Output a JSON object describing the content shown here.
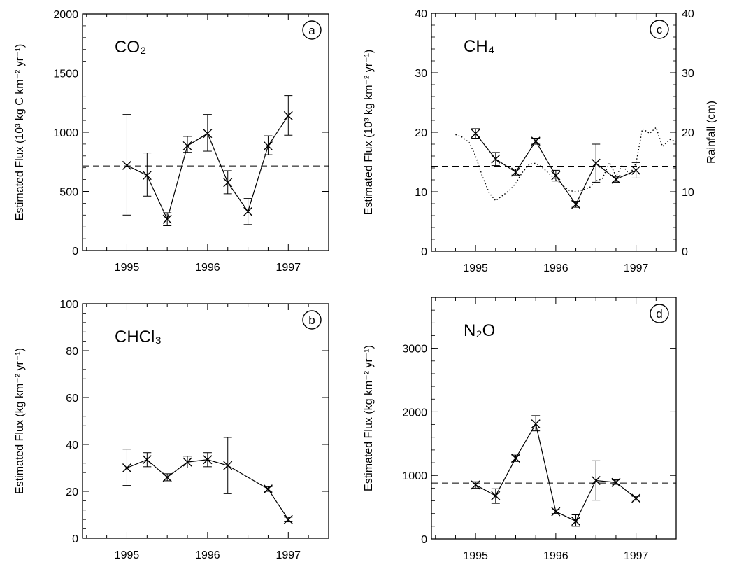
{
  "chart_data": [
    {
      "panel_label": "a",
      "type": "line",
      "title": "CO₂",
      "ylabel": "Estimated Flux (10³ kg C km⁻² yr⁻¹)",
      "xlabel": "",
      "xlim": [
        1994.45,
        1997.5
      ],
      "ylim": [
        0,
        2000
      ],
      "xticks": [
        1995,
        1996,
        1997
      ],
      "yticks": [
        0,
        500,
        1000,
        1500,
        2000
      ],
      "reference_line": 715,
      "series": [
        {
          "x": [
            1995.0,
            1995.25,
            1995.5,
            1995.75,
            1996.0,
            1996.25,
            1996.5,
            1996.75,
            1997.0
          ],
          "y": [
            720,
            635,
            265,
            885,
            990,
            575,
            330,
            885,
            1140
          ],
          "err_low": [
            300,
            460,
            210,
            830,
            840,
            480,
            220,
            810,
            975
          ],
          "err_high": [
            1150,
            825,
            320,
            965,
            1150,
            675,
            440,
            970,
            1310
          ]
        }
      ]
    },
    {
      "panel_label": "b",
      "type": "line",
      "title": "CHCl₃",
      "ylabel": "Estimated Flux (kg km⁻² yr⁻¹)",
      "xlabel": "",
      "xlim": [
        1994.45,
        1997.5
      ],
      "ylim": [
        0,
        100
      ],
      "xticks": [
        1995,
        1996,
        1997
      ],
      "yticks": [
        0,
        20,
        40,
        60,
        80,
        100
      ],
      "reference_line": 27,
      "series": [
        {
          "x": [
            1995.0,
            1995.25,
            1995.5,
            1995.75,
            1996.0,
            1996.25,
            1996.75,
            1997.0
          ],
          "y": [
            30,
            33.5,
            26,
            32.5,
            33.5,
            31,
            21,
            8
          ],
          "err_low": [
            22.5,
            30.5,
            24.5,
            30,
            30.5,
            19,
            20,
            7
          ],
          "err_high": [
            38,
            36.5,
            27.5,
            35,
            36.5,
            43,
            22,
            9
          ]
        }
      ]
    },
    {
      "panel_label": "c",
      "type": "line",
      "title": "CH₄",
      "ylabel": "Estimated Flux (10³ kg km⁻² yr⁻¹)",
      "y2label": "Rainfall (cm)",
      "xlabel": "",
      "xlim": [
        1994.45,
        1997.5
      ],
      "ylim": [
        0,
        40
      ],
      "y2lim": [
        0,
        40
      ],
      "xticks": [
        1995,
        1996,
        1997
      ],
      "yticks": [
        0,
        10,
        20,
        30,
        40
      ],
      "y2ticks": [
        0,
        10,
        20,
        30,
        40
      ],
      "reference_line": 14.3,
      "series": [
        {
          "x": [
            1995.0,
            1995.25,
            1995.5,
            1995.75,
            1996.0,
            1996.25,
            1996.5,
            1996.75,
            1997.0
          ],
          "y": [
            19.8,
            15.5,
            13.3,
            18.5,
            12.7,
            7.9,
            14.8,
            12.1,
            13.6
          ],
          "err_low": [
            19.0,
            14.4,
            12.8,
            18.0,
            11.8,
            7.4,
            11.6,
            11.6,
            12.3
          ],
          "err_high": [
            20.6,
            16.6,
            13.8,
            19.0,
            13.6,
            8.4,
            18.0,
            12.6,
            14.9
          ]
        }
      ],
      "rainfall": {
        "x": [
          1994.75,
          1994.83,
          1994.92,
          1995.0,
          1995.08,
          1995.17,
          1995.25,
          1995.33,
          1995.42,
          1995.5,
          1995.58,
          1995.67,
          1995.75,
          1995.83,
          1995.92,
          1996.0,
          1996.08,
          1996.17,
          1996.25,
          1996.33,
          1996.42,
          1996.5,
          1996.58,
          1996.67,
          1996.75,
          1996.83,
          1996.92,
          1997.0,
          1997.08,
          1997.17,
          1997.25,
          1997.33,
          1997.42,
          1997.5
        ],
        "y": [
          19.6,
          19.2,
          18.3,
          16.0,
          12.8,
          9.8,
          8.5,
          9.3,
          10.2,
          11.4,
          13.2,
          14.6,
          14.8,
          14.1,
          13.0,
          12.0,
          11.1,
          10.2,
          10.0,
          10.3,
          10.7,
          11.8,
          12.2,
          14.9,
          12.6,
          14.5,
          12.8,
          14.8,
          20.6,
          19.8,
          20.8,
          17.6,
          18.8,
          18.5
        ]
      }
    },
    {
      "panel_label": "d",
      "type": "line",
      "title": "N₂O",
      "ylabel": "Estimated Flux (kg km⁻² yr⁻¹)",
      "xlabel": "",
      "xlim": [
        1994.45,
        1997.5
      ],
      "ylim": [
        0,
        3800
      ],
      "xticks": [
        1995,
        1996,
        1997
      ],
      "yticks": [
        0,
        1000,
        2000,
        3000
      ],
      "reference_line": 880,
      "series": [
        {
          "x": [
            1995.0,
            1995.25,
            1995.5,
            1995.75,
            1996.0,
            1996.25,
            1996.5,
            1996.75,
            1997.0
          ],
          "y": [
            850,
            680,
            1270,
            1810,
            430,
            280,
            920,
            890,
            640
          ],
          "err_low": [
            800,
            560,
            1220,
            1700,
            400,
            200,
            610,
            860,
            610
          ],
          "err_high": [
            900,
            790,
            1320,
            1940,
            460,
            380,
            1230,
            930,
            670
          ]
        }
      ]
    }
  ]
}
